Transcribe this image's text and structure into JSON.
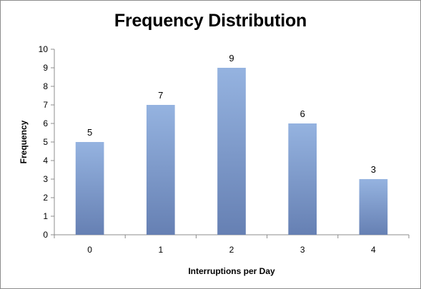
{
  "chart_data": {
    "type": "bar",
    "title": "Frequency Distribution",
    "xlabel": "Interruptions per Day",
    "ylabel": "Frequency",
    "categories": [
      "0",
      "1",
      "2",
      "3",
      "4"
    ],
    "values": [
      5,
      7,
      9,
      6,
      3
    ],
    "data_labels": [
      "5",
      "7",
      "9",
      "6",
      "3"
    ],
    "ylim": [
      0,
      10
    ],
    "yticks": [
      "0",
      "1",
      "2",
      "3",
      "4",
      "5",
      "6",
      "7",
      "8",
      "9",
      "10"
    ],
    "grid": false,
    "legend": "none",
    "bar_color_top": "#95b3e0",
    "bar_color_bottom": "#6680b3"
  }
}
